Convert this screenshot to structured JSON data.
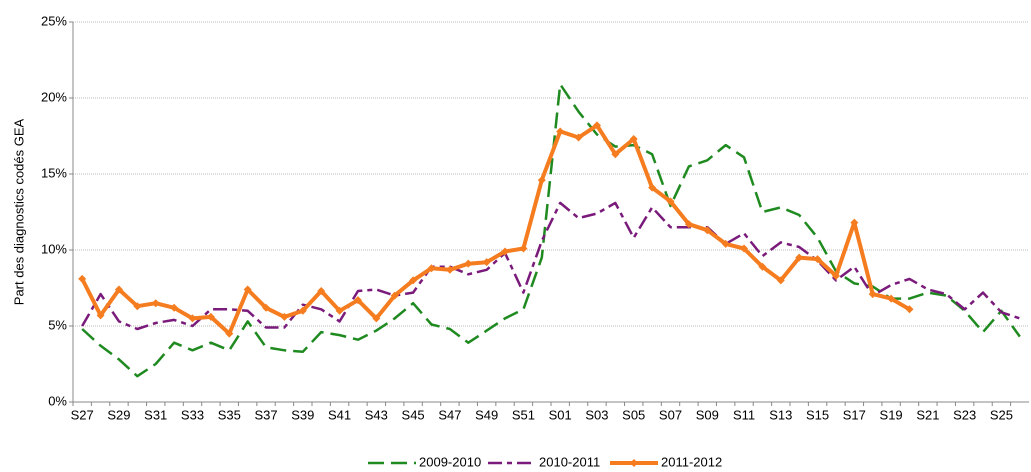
{
  "chart_data": {
    "type": "line",
    "y_label": "Part des diagnostics codés GEA",
    "categories": [
      "S27",
      null,
      "S29",
      null,
      "S31",
      null,
      "S33",
      null,
      "S35",
      null,
      "S37",
      null,
      "S39",
      null,
      "S41",
      null,
      "S43",
      null,
      "S45",
      null,
      "S47",
      null,
      "S49",
      null,
      "S51",
      null,
      "S01",
      null,
      "S03",
      null,
      "S05",
      null,
      "S07",
      null,
      "S09",
      null,
      "S11",
      null,
      "S13",
      null,
      "S15",
      null,
      "S17",
      null,
      "S19",
      null,
      "S21",
      null,
      "S23",
      null,
      "S25",
      null
    ],
    "ylim": [
      0,
      25
    ],
    "yticks": [
      {
        "value": 0,
        "label": "0%"
      },
      {
        "value": 5,
        "label": "5%"
      },
      {
        "value": 10,
        "label": "10%"
      },
      {
        "value": 15,
        "label": "15%"
      },
      {
        "value": 20,
        "label": "20%"
      },
      {
        "value": 25,
        "label": "25%"
      }
    ],
    "grid": true,
    "legend": "bottom",
    "series": [
      {
        "name": "2009-2010",
        "color": "#1f8a1f",
        "dash": "long-dash",
        "values": [
          4.8,
          3.7,
          2.8,
          1.7,
          2.5,
          3.9,
          3.4,
          3.9,
          3.4,
          5.3,
          3.6,
          3.4,
          3.3,
          4.6,
          4.4,
          4.1,
          4.7,
          5.5,
          6.5,
          5.1,
          4.8,
          3.9,
          4.7,
          5.5,
          6.1,
          9.5,
          20.9,
          19.1,
          17.6,
          16.8,
          16.9,
          16.3,
          12.9,
          15.5,
          15.9,
          16.9,
          16.1,
          12.5,
          12.8,
          12.3,
          10.8,
          8.6,
          7.8,
          7.6,
          6.8,
          6.8,
          7.2,
          7.0,
          6.0,
          4.6,
          6.0,
          4.3
        ]
      },
      {
        "name": "2010-2011",
        "color": "#7a1a7a",
        "dash": "dash-dot",
        "values": [
          5.0,
          7.1,
          5.3,
          4.8,
          5.2,
          5.4,
          5.0,
          6.1,
          6.1,
          6.0,
          4.9,
          4.9,
          6.4,
          6.1,
          5.3,
          7.3,
          7.4,
          7.0,
          7.2,
          8.9,
          8.9,
          8.4,
          8.7,
          9.8,
          7.2,
          10.6,
          13.1,
          12.1,
          12.4,
          13.1,
          10.8,
          12.8,
          11.5,
          11.5,
          11.5,
          10.4,
          11.1,
          9.6,
          10.5,
          10.2,
          9.3,
          8.0,
          8.9,
          7.0,
          7.7,
          8.1,
          7.4,
          7.1,
          6.1,
          7.2,
          5.9,
          5.5
        ]
      },
      {
        "name": "2011-2012",
        "color": "#f57c1f",
        "dash": "solid",
        "marker": "diamond",
        "values": [
          8.1,
          5.7,
          7.4,
          6.3,
          6.5,
          6.2,
          5.5,
          5.6,
          4.5,
          7.4,
          6.2,
          5.6,
          6.0,
          7.3,
          6.0,
          6.7,
          5.5,
          7.0,
          8.0,
          8.8,
          8.7,
          9.1,
          9.2,
          9.9,
          10.1,
          14.6,
          17.8,
          17.4,
          18.2,
          16.3,
          17.3,
          14.1,
          13.2,
          11.7,
          11.3,
          10.4,
          10.1,
          8.9,
          8.0,
          9.5,
          9.4,
          8.3,
          11.8,
          7.1,
          6.8,
          6.1,
          null,
          null,
          null,
          null,
          null,
          null
        ]
      }
    ]
  }
}
